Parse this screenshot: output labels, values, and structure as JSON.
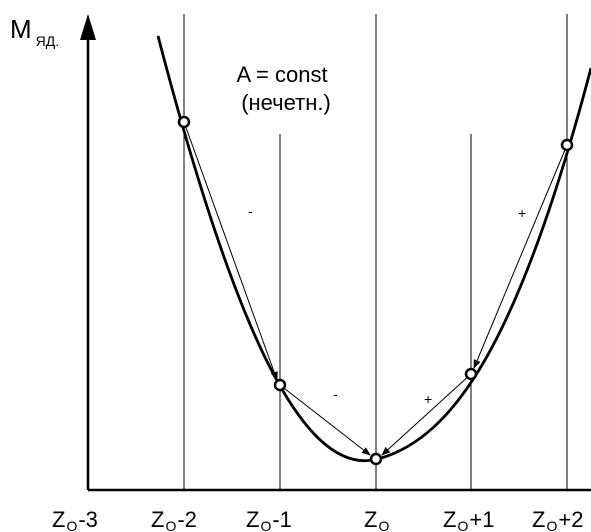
{
  "axis": {
    "y_label": {
      "main": "M",
      "sub": "ЯД."
    }
  },
  "annotation": {
    "line1": "A = const",
    "line2": "(нечетн.)"
  },
  "x_ticks": [
    {
      "main": "Z",
      "sub": "O",
      "suffix": "-3"
    },
    {
      "main": "Z",
      "sub": "O",
      "suffix": "-2"
    },
    {
      "main": "Z",
      "sub": "O",
      "suffix": "-1"
    },
    {
      "main": "Z",
      "sub": "O",
      "suffix": ""
    },
    {
      "main": "Z",
      "sub": "O",
      "suffix": "+1"
    },
    {
      "main": "Z",
      "sub": "O",
      "suffix": "+2"
    }
  ],
  "sign_labels": [
    "-",
    "-",
    "+",
    "+"
  ],
  "colors": {
    "ink": "#000000",
    "background": "#ffffff"
  }
}
